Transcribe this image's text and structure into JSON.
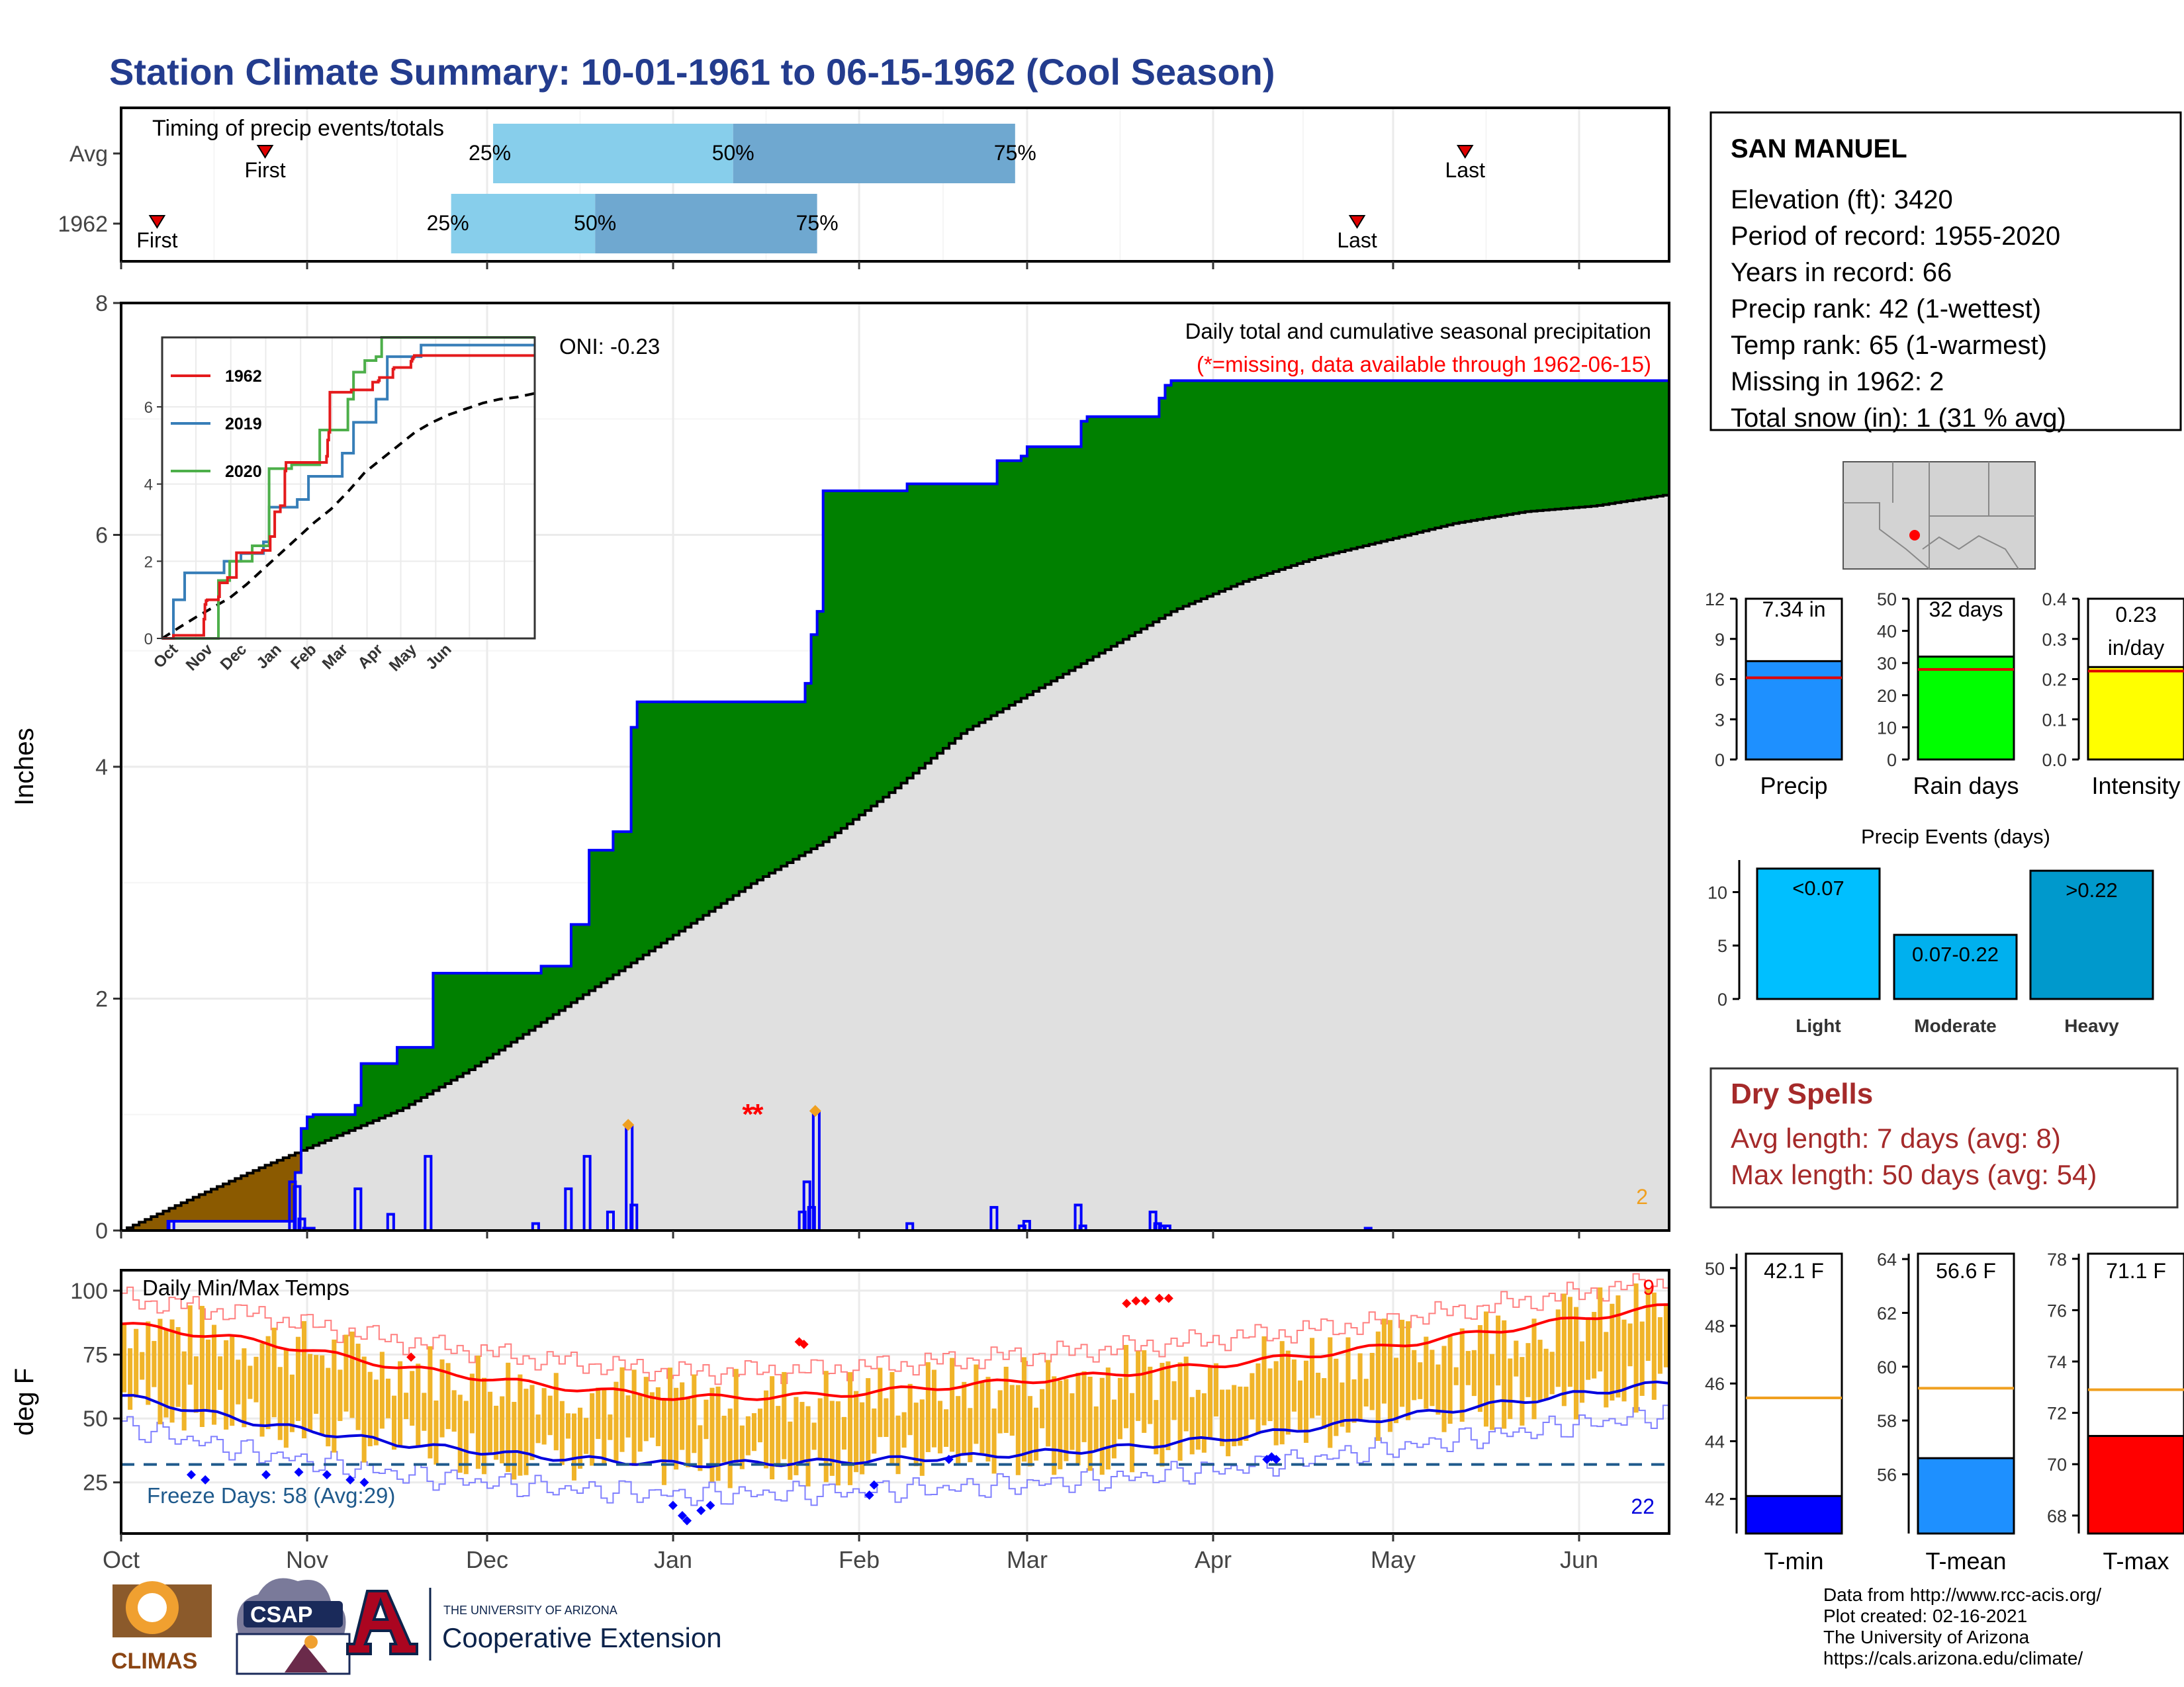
{
  "title": "Station Climate Summary: 10-01-1961 to 06-15-1962 (Cool Season)",
  "timing": {
    "title": "Timing of precip events/totals",
    "rows": [
      {
        "label": "Avg",
        "first_label": "First",
        "last_label": "Last",
        "first_date": "Oct 25",
        "last_date": "May 13",
        "q25_label": "25%",
        "q50_label": "50%",
        "q75_label": "75%",
        "q25_date": "Dec 2",
        "q50_date": "Jan 11",
        "q75_date": "Feb 27"
      },
      {
        "label": "1962",
        "first_label": "First",
        "last_label": "Last",
        "first_date": "Oct 7",
        "last_date": "Apr 25",
        "q25_label": "25%",
        "q50_label": "50%",
        "q75_label": "75%",
        "q25_date": "Nov 25",
        "q50_date": "Dec 19",
        "q75_date": "Jan 25"
      }
    ]
  },
  "station": {
    "name": "SAN MANUEL",
    "lines": [
      "Elevation (ft): 3420",
      "Period of record: 1955-2020",
      "Years in record: 66",
      "Precip rank: 42 (1-wettest)",
      "Temp rank: 65 (1-warmest)",
      "Missing in 1962: 2",
      "Total snow (in): 1 (31 % avg)"
    ]
  },
  "precip_panel": {
    "ylabel": "Inches",
    "yticks": [
      "0",
      "2",
      "4",
      "6",
      "8"
    ],
    "ymax": 8,
    "header": "Daily total and cumulative seasonal precipitation",
    "note": "(*=missing, data available through 1962-06-15)",
    "oni": "ONI: -0.23",
    "corner_count": "2",
    "colors": {
      "above_avg": "#008000",
      "below_avg": "#8B5A00",
      "avg_fill": "#E0E0E0",
      "daily_bar": "#0000FF"
    },
    "cumulative_avg": [
      [
        0,
        0
      ],
      [
        15,
        0.28
      ],
      [
        30,
        0.55
      ],
      [
        45,
        0.8
      ],
      [
        60,
        1.05
      ],
      [
        75,
        1.4
      ],
      [
        90,
        1.8
      ],
      [
        105,
        2.2
      ],
      [
        120,
        2.6
      ],
      [
        135,
        3.0
      ],
      [
        150,
        3.35
      ],
      [
        165,
        3.8
      ],
      [
        180,
        4.3
      ],
      [
        195,
        4.65
      ],
      [
        210,
        5.0
      ],
      [
        225,
        5.35
      ],
      [
        240,
        5.6
      ],
      [
        255,
        5.8
      ],
      [
        270,
        5.95
      ],
      [
        285,
        6.1
      ],
      [
        300,
        6.2
      ],
      [
        315,
        6.25
      ],
      [
        331,
        6.35
      ]
    ],
    "cumulative_1962": [
      [
        0,
        0
      ],
      [
        10,
        0.08
      ],
      [
        36,
        0.08
      ],
      [
        37,
        0.5
      ],
      [
        38,
        0.88
      ],
      [
        39,
        0.98
      ],
      [
        40,
        1.0
      ],
      [
        50,
        1.08
      ],
      [
        51,
        1.44
      ],
      [
        57,
        1.44
      ],
      [
        58,
        1.58
      ],
      [
        65,
        1.58
      ],
      [
        66,
        2.22
      ],
      [
        88,
        2.22
      ],
      [
        89,
        2.28
      ],
      [
        95,
        2.28
      ],
      [
        96,
        2.64
      ],
      [
        99,
        2.64
      ],
      [
        100,
        3.28
      ],
      [
        104,
        3.28
      ],
      [
        105,
        3.44
      ],
      [
        108,
        3.44
      ],
      [
        109,
        4.34
      ],
      [
        110,
        4.56
      ],
      [
        145,
        4.56
      ],
      [
        146,
        4.72
      ],
      [
        147,
        5.14
      ],
      [
        148,
        5.34
      ],
      [
        149,
        6.38
      ],
      [
        168,
        6.44
      ],
      [
        186,
        6.44
      ],
      [
        187,
        6.64
      ],
      [
        192,
        6.68
      ],
      [
        193,
        6.76
      ],
      [
        204,
        6.76
      ],
      [
        205,
        6.98
      ],
      [
        206,
        7.02
      ],
      [
        220,
        7.02
      ],
      [
        221,
        7.18
      ],
      [
        222,
        7.24
      ],
      [
        223,
        7.29
      ],
      [
        224,
        7.33
      ],
      [
        331,
        7.33
      ]
    ],
    "daily_1962": [
      [
        10,
        0.08
      ],
      [
        36,
        0.42
      ],
      [
        37,
        0.38
      ],
      [
        38,
        0.1
      ],
      [
        39,
        0.02
      ],
      [
        40,
        0.02
      ],
      [
        50,
        0.36
      ],
      [
        57,
        0.14
      ],
      [
        65,
        0.64
      ],
      [
        88,
        0.06
      ],
      [
        95,
        0.36
      ],
      [
        99,
        0.64
      ],
      [
        104,
        0.16
      ],
      [
        108,
        0.9
      ],
      [
        109,
        0.22
      ],
      [
        145,
        0.16
      ],
      [
        146,
        0.42
      ],
      [
        147,
        0.2
      ],
      [
        148,
        1.02
      ],
      [
        168,
        0.06
      ],
      [
        186,
        0.2
      ],
      [
        192,
        0.04
      ],
      [
        193,
        0.08
      ],
      [
        204,
        0.22
      ],
      [
        205,
        0.04
      ],
      [
        220,
        0.16
      ],
      [
        221,
        0.06
      ],
      [
        222,
        0.04
      ],
      [
        223,
        0.04
      ],
      [
        266,
        0.02
      ]
    ],
    "missing_days": [
      134,
      135
    ],
    "inset": {
      "yticks": [
        "0",
        "2",
        "4",
        "6"
      ],
      "xticks": [
        "Oct",
        "Nov",
        "Dec",
        "Jan",
        "Feb",
        "Mar",
        "Apr",
        "May",
        "Jun"
      ],
      "legend": [
        {
          "name": "1962",
          "color": "#E41A1C"
        },
        {
          "name": "2019",
          "color": "#377EB8"
        },
        {
          "name": "2020",
          "color": "#4DAF4A"
        }
      ],
      "series_2019": [
        [
          0,
          0
        ],
        [
          10,
          1.0
        ],
        [
          20,
          1.7
        ],
        [
          45,
          1.7
        ],
        [
          55,
          2.0
        ],
        [
          70,
          2.2
        ],
        [
          90,
          2.5
        ],
        [
          95,
          3.4
        ],
        [
          120,
          3.6
        ],
        [
          130,
          4.2
        ],
        [
          160,
          4.8
        ],
        [
          170,
          5.6
        ],
        [
          190,
          6.2
        ],
        [
          200,
          7.3
        ],
        [
          230,
          7.6
        ],
        [
          331,
          7.6
        ]
      ],
      "series_2020": [
        [
          0,
          0
        ],
        [
          45,
          0
        ],
        [
          50,
          1.5
        ],
        [
          60,
          2.0
        ],
        [
          80,
          2.4
        ],
        [
          95,
          4.4
        ],
        [
          115,
          4.5
        ],
        [
          140,
          5.4
        ],
        [
          165,
          6.2
        ],
        [
          170,
          6.9
        ],
        [
          180,
          7.2
        ],
        [
          190,
          7.3
        ],
        [
          195,
          7.8
        ],
        [
          230,
          7.8
        ],
        [
          331,
          7.8
        ]
      ]
    }
  },
  "temp_panel": {
    "ylabel": "deg F",
    "yticks": [
      "25",
      "50",
      "75",
      "100"
    ],
    "title": "Daily Min/Max Temps",
    "freeze_text": "Freeze Days: 58 (Avg:29)",
    "top_count": "9",
    "bottom_count": "22",
    "freeze_line": 32,
    "colors": {
      "bars": "#F0B429",
      "avg_max": "#FF0000",
      "avg_min": "#0000DD",
      "freeze": "#1F5A8C"
    },
    "avg_max": [
      [
        0,
        87
      ],
      [
        30,
        80
      ],
      [
        60,
        70
      ],
      [
        90,
        63
      ],
      [
        120,
        58
      ],
      [
        150,
        59
      ],
      [
        180,
        63
      ],
      [
        210,
        67
      ],
      [
        240,
        72
      ],
      [
        270,
        78
      ],
      [
        300,
        86
      ],
      [
        331,
        94
      ]
    ],
    "avg_min": [
      [
        0,
        59
      ],
      [
        30,
        48
      ],
      [
        60,
        40
      ],
      [
        90,
        35
      ],
      [
        120,
        32
      ],
      [
        150,
        33
      ],
      [
        180,
        35
      ],
      [
        210,
        38
      ],
      [
        240,
        43
      ],
      [
        270,
        50
      ],
      [
        300,
        57
      ],
      [
        331,
        64
      ]
    ]
  },
  "xaxis": {
    "months": [
      "Oct",
      "Nov",
      "Dec",
      "Jan",
      "Feb",
      "Mar",
      "Apr",
      "May",
      "Jun"
    ],
    "month_start_days": [
      0,
      31,
      61,
      92,
      123,
      151,
      182,
      212,
      243
    ],
    "total_days": 258
  },
  "summary_bars": [
    {
      "label": "Precip",
      "value_label": "7.34 in",
      "value": 7.34,
      "avg": 6.1,
      "max": 12,
      "ticks": [
        "0",
        "3",
        "6",
        "9",
        "12"
      ],
      "color": "#1E90FF"
    },
    {
      "label": "Rain days",
      "value_label": "32 days",
      "value": 32,
      "avg": 28,
      "max": 50,
      "ticks": [
        "0",
        "10",
        "20",
        "30",
        "40",
        "50"
      ],
      "color": "#00FF00"
    },
    {
      "label": "Intensity",
      "value_label": "0.23 in/day",
      "value_line1": "0.23",
      "value_line2": "in/day",
      "value": 0.23,
      "avg": 0.22,
      "max": 0.4,
      "ticks": [
        "0.0",
        "0.1",
        "0.2",
        "0.3",
        "0.4"
      ],
      "color": "#FFFF00"
    }
  ],
  "precip_events": {
    "title": "Precip Events (days)",
    "ticks": [
      "0",
      "5",
      "10"
    ],
    "max": 13,
    "bars": [
      {
        "label": "Light",
        "value_label": "<0.07",
        "value": 12.2,
        "color": "#00BFFF"
      },
      {
        "label": "Moderate",
        "value_label": "0.07-0.22",
        "value": 6.0,
        "color": "#00B0EE"
      },
      {
        "label": "Heavy",
        "value_label": ">0.22",
        "value": 12.0,
        "color": "#0099CC"
      }
    ]
  },
  "dry_spells": {
    "title": "Dry Spells",
    "avg_line": "Avg length: 7 days (avg: 8)",
    "max_line": "Max length: 50 days (avg: 54)",
    "color": "#A52A2A"
  },
  "temp_bars": [
    {
      "label": "T-min",
      "value_label": "42.1 F",
      "value": 42.1,
      "avg": 45.5,
      "min": 40.8,
      "max": 50.5,
      "ticks": [
        "42",
        "44",
        "46",
        "48",
        "50"
      ],
      "color": "#0000FF"
    },
    {
      "label": "T-mean",
      "value_label": "56.6 F",
      "value": 56.6,
      "avg": 59.2,
      "min": 53.8,
      "max": 64.2,
      "ticks": [
        "56",
        "58",
        "60",
        "62",
        "64"
      ],
      "color": "#1E90FF"
    },
    {
      "label": "T-max",
      "value_label": "71.1 F",
      "value": 71.1,
      "avg": 72.9,
      "min": 67.3,
      "max": 78.2,
      "ticks": [
        "68",
        "70",
        "72",
        "74",
        "76",
        "78"
      ],
      "color": "#FF0000"
    }
  ],
  "credits": [
    "Data from http://www.rcc-acis.org/",
    "Plot created: 02-16-2021",
    "The University of Arizona",
    "https://cals.arizona.edu/climate/"
  ],
  "logos": {
    "climas": "CLIMAS",
    "csap": "CSAP",
    "ua_small": "THE UNIVERSITY OF ARIZONA",
    "ua_big": "Cooperative Extension"
  }
}
